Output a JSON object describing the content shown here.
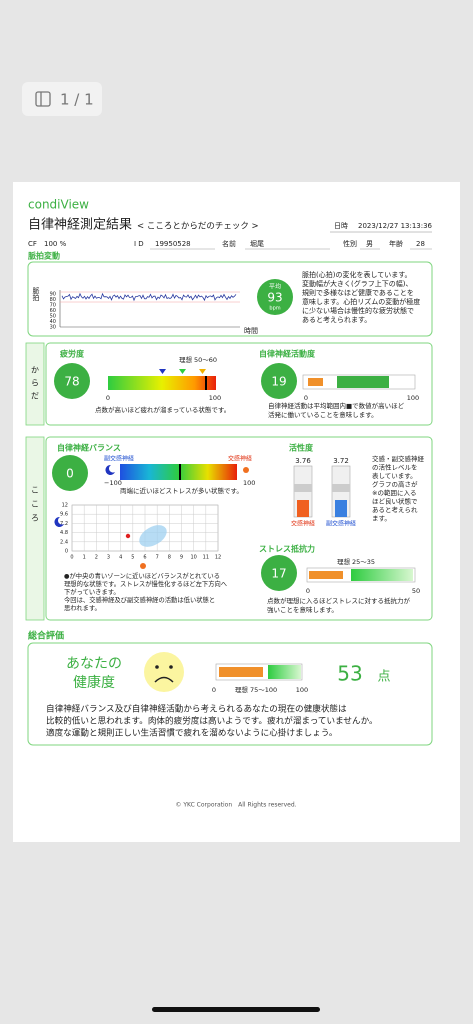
{
  "viewer": {
    "page_indicator": "1 / 1"
  },
  "header": {
    "brand": "condiView",
    "title": "自律神経測定結果",
    "subtitle": "< こころとからだのチェック >",
    "date_label": "日時",
    "date_value": "2023/12/27 13:13:36"
  },
  "info": {
    "cf_label": "CF",
    "cf_value": "100 %",
    "id_label": "I D",
    "id_value": "19950528",
    "name_label": "名前",
    "name_value": "堀尾",
    "sex_label": "性別",
    "sex_value": "男",
    "age_label": "年齢",
    "age_value": "28"
  },
  "pulse": {
    "title": "脈拍変動",
    "axis_label": "脈拍",
    "x_label": "時間",
    "yticks": [
      "90",
      "80",
      "70",
      "60",
      "50",
      "40",
      "30"
    ],
    "avg_label": "平均",
    "avg_value": "93",
    "avg_unit": "bpm",
    "description": [
      "脈拍(心拍)の変化を表しています。",
      "変動幅が大きく(グラフ上下の幅)、",
      "規則で多様なほど健康であることを",
      "意味します。心拍リズムの変動が極度",
      "に少ない場合は慢性的な疲労状態で",
      "あると考えられます。"
    ]
  },
  "body": {
    "side_label": [
      "か",
      "ら",
      "だ"
    ],
    "fatigue": {
      "title": "疲労度",
      "value": "78",
      "ideal": "理想 50～60",
      "min": "0",
      "max": "100",
      "note": "点数が高いほど疲れが溜まっている状態です。"
    },
    "activity": {
      "title": "自律神経活動度",
      "value": "19",
      "min": "0",
      "max": "100",
      "note": [
        "自律神経活動は平均範囲内■で数値が高いほど",
        "活発に働いていることを意味します。"
      ]
    }
  },
  "mind": {
    "side_label": [
      "こ",
      "こ",
      "ろ"
    ],
    "balance": {
      "title": "自律神経バランス",
      "value": "0",
      "left_label": "副交感神経",
      "right_label": "交感神経",
      "min": "−100",
      "max": "100",
      "note": "両端に近いほどストレスが多い状態です。",
      "yticks": [
        "12",
        "9.6",
        "7.2",
        "4.8",
        "2.4",
        "0"
      ],
      "xticks": [
        "0",
        "1",
        "2",
        "3",
        "4",
        "5",
        "6",
        "7",
        "8",
        "9",
        "10",
        "11",
        "12"
      ],
      "explanation": [
        "●が中央の青いゾーンに近いほどバランスがとれている",
        "理想的な状態です。ストレスが慢性化するほど左下方向へ",
        "下がっていきます。",
        "今回は、交感神経及び副交感神経の活動は低い状態と",
        "思われます。"
      ]
    },
    "vitality": {
      "title": "活性度",
      "sympathetic_value": "3.76",
      "parasympathetic_value": "3.72",
      "sympathetic_label": "交感神経",
      "parasympathetic_label": "副交感神経",
      "description": [
        "交感・副交感神経",
        "の活性レベルを",
        "表しています。",
        "グラフの高さが",
        "※の範囲に入る",
        "ほど良い状態で",
        "あると考えられ",
        "ます。"
      ]
    },
    "stress": {
      "title": "ストレス抵抗力",
      "value": "17",
      "ideal": "理想 25～35",
      "min": "0",
      "max": "50",
      "note": [
        "点数が理想に入るほどストレスに対する抵抗力が",
        "強いことを意味します。"
      ]
    }
  },
  "overall": {
    "title": "総合評価",
    "health_label": [
      "あなたの",
      "健康度"
    ],
    "score": "53",
    "unit": "点",
    "min": "0",
    "ideal": "理想 75～100",
    "max": "100",
    "comment": [
      "自律神経バランス及び自律神経活動から考えられるあなたの現在の健康状態は",
      "比較的低いと思われます。肉体的疲労度は高いようです。疲れが溜まっていませんか。",
      "適度な運動と規則正しい生活習慣で疲れを溜めないように心掛けましょう。"
    ]
  },
  "footer": {
    "copyright": "© YKC Corporation　All Rights reserved."
  }
}
